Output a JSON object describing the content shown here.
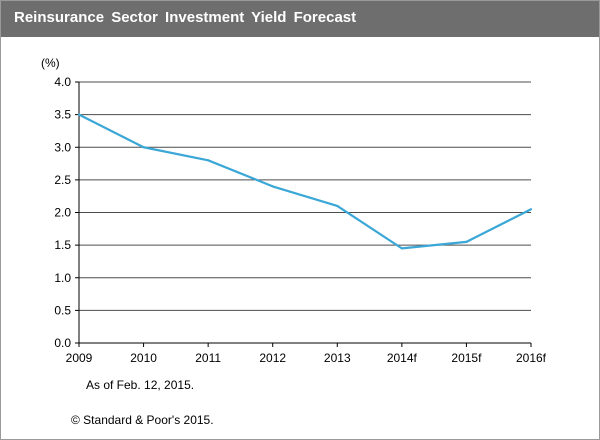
{
  "title": "Reinsurance  Sector Investment Yield Forecast",
  "notes": {
    "as_of": "As of Feb. 12, 2015.",
    "copyright": "© Standard & Poor's 2015."
  },
  "colors": {
    "title_bar": "#6e6e6e",
    "line": "#3aa7d6",
    "grid": "#4d4d4d"
  },
  "chart_data": {
    "type": "line",
    "title": "Reinsurance  Sector Investment Yield Forecast",
    "ylabel": "(%)",
    "xlabel": "",
    "categories": [
      "2009",
      "2010",
      "2011",
      "2012",
      "2013",
      "2014f",
      "2015f",
      "2016f"
    ],
    "series": [
      {
        "values": [
          3.5,
          3.0,
          2.8,
          2.4,
          2.1,
          1.45,
          1.55,
          2.05
        ]
      }
    ],
    "ylim": [
      0,
      4.0
    ],
    "yticks": [
      "0.0",
      "0.5",
      "1.0",
      "1.5",
      "2.0",
      "2.5",
      "3.0",
      "3.5",
      "4.0"
    ],
    "grid": "horizontal",
    "legend": "none"
  }
}
